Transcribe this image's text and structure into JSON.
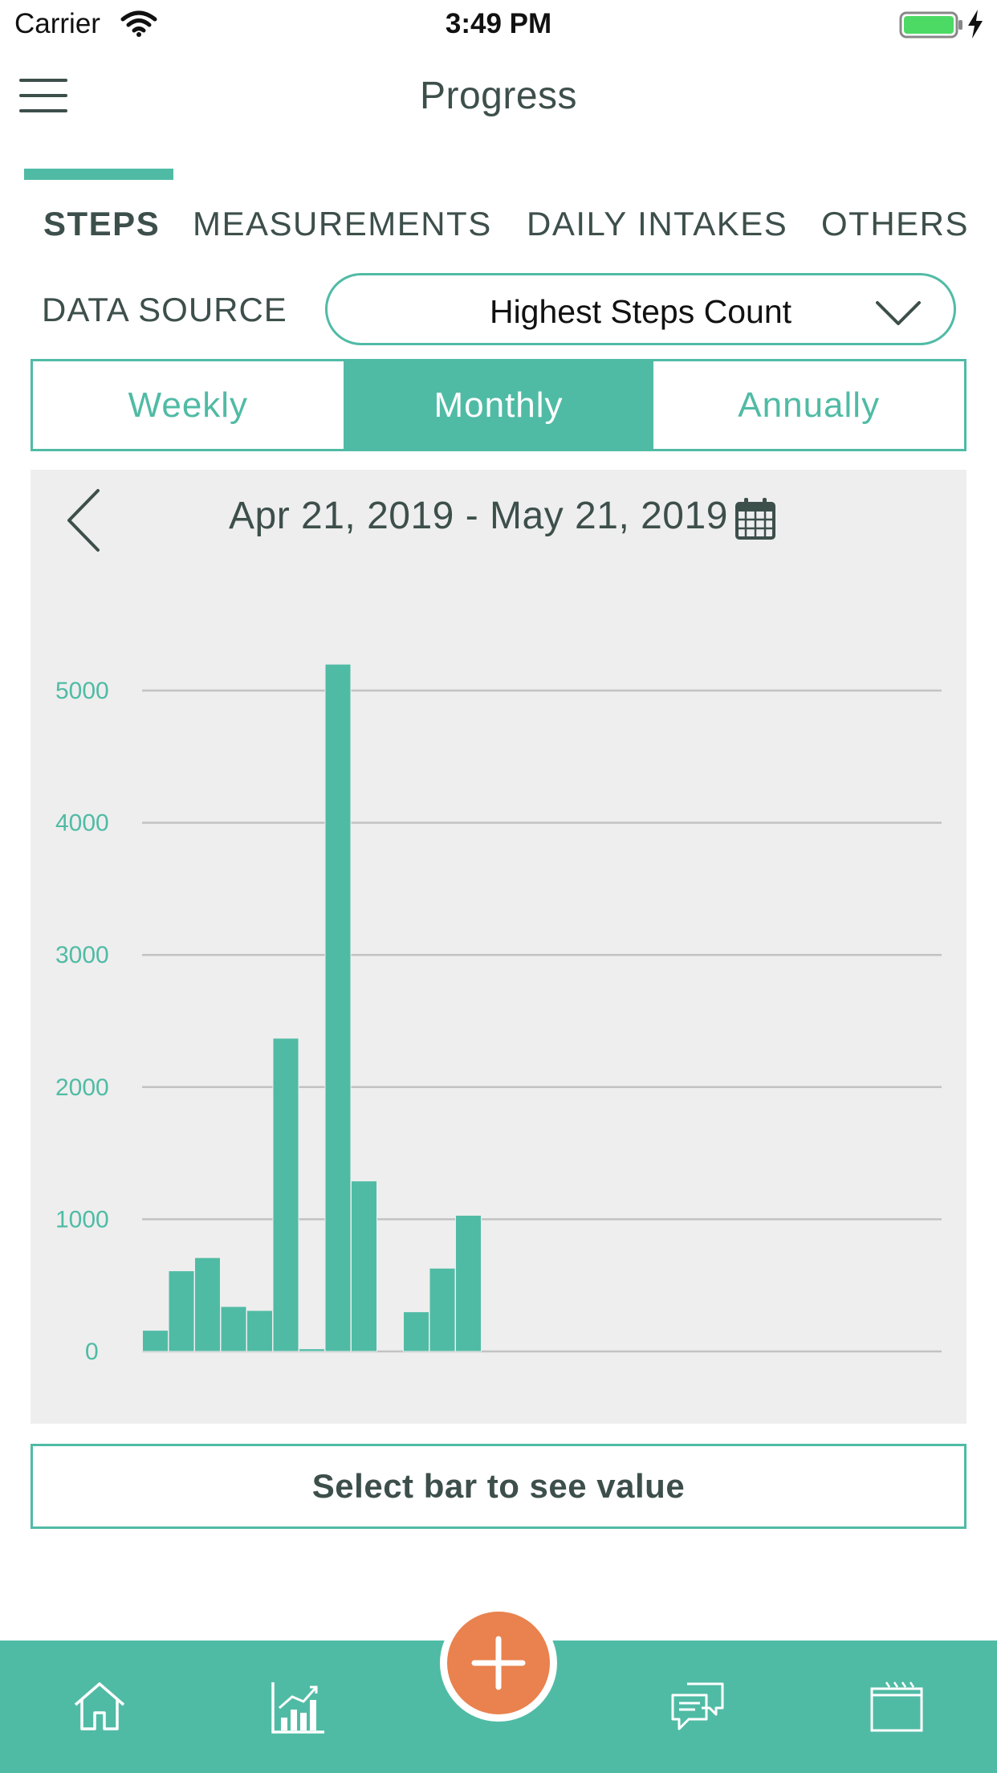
{
  "status_bar": {
    "carrier": "Carrier",
    "time": "3:49 PM"
  },
  "header": {
    "title": "Progress"
  },
  "tabs": [
    {
      "label": "STEPS",
      "active": true
    },
    {
      "label": "MEASUREMENTS",
      "active": false
    },
    {
      "label": "DAILY INTAKES",
      "active": false
    },
    {
      "label": "OTHERS",
      "active": false
    }
  ],
  "data_source": {
    "label": "DATA SOURCE",
    "selected": "Highest Steps Count"
  },
  "period": {
    "options": [
      "Weekly",
      "Monthly",
      "Annually"
    ],
    "selected": "Monthly"
  },
  "range": {
    "label": "Apr 21, 2019 - May 21, 2019"
  },
  "chart_data": {
    "type": "bar",
    "title": "",
    "xlabel": "",
    "ylabel": "",
    "ylim": [
      0,
      5000
    ],
    "yticks": [
      "0",
      "1000",
      "2000",
      "3000",
      "4000",
      "5000"
    ],
    "grid": true,
    "bar_color": "#50bba5",
    "values": [
      160,
      610,
      710,
      340,
      310,
      2370,
      20,
      5200,
      1290,
      0,
      300,
      630,
      1030,
      0,
      0,
      0,
      0,
      0,
      0,
      0,
      0,
      0,
      0,
      0,
      0,
      0,
      0,
      0,
      0,
      0,
      0
    ]
  },
  "value_box": {
    "text": "Select bar to see value"
  },
  "bottom_nav": {
    "items": [
      "home-icon",
      "chart-icon",
      "add-icon",
      "chat-icon",
      "calendar-icon"
    ]
  },
  "colors": {
    "accent": "#50bba5",
    "fab": "#e9824e",
    "text": "#3d4f4b"
  }
}
